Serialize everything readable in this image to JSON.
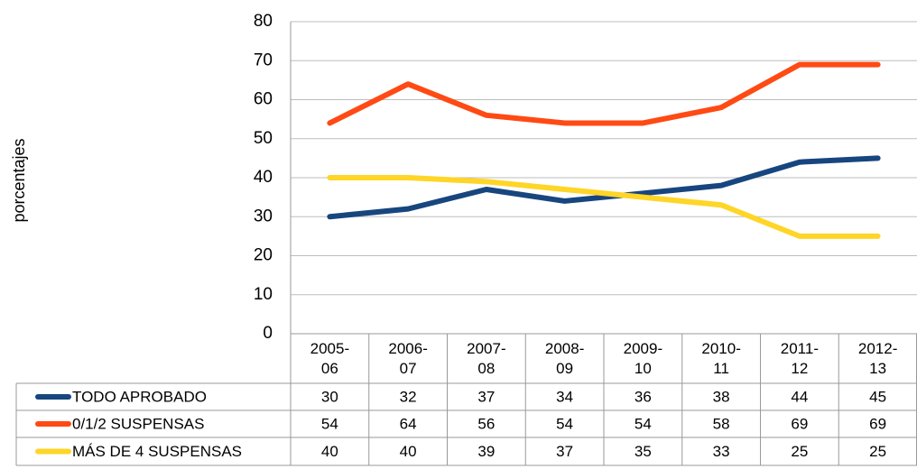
{
  "chart_data": {
    "type": "line",
    "ylabel": "porcentajes",
    "categories": [
      "2005-06",
      "2006-07",
      "2007-08",
      "2008-09",
      "2009-10",
      "2010-11",
      "2011-12",
      "2012-13"
    ],
    "series": [
      {
        "name": "TODO APROBADO",
        "color": "#17467f",
        "values": [
          30,
          32,
          37,
          34,
          36,
          38,
          44,
          45
        ]
      },
      {
        "name": "0/1/2 SUSPENSAS",
        "color": "#ff4a14",
        "values": [
          54,
          64,
          56,
          54,
          54,
          58,
          69,
          69
        ]
      },
      {
        "name": "MÁS DE 4 SUSPENSAS",
        "color": "#ffd527",
        "values": [
          40,
          40,
          39,
          37,
          35,
          33,
          25,
          25
        ]
      }
    ],
    "ylim": [
      0,
      80
    ],
    "yticks": [
      0,
      10,
      20,
      30,
      40,
      50,
      60,
      70,
      80
    ],
    "grid": true
  }
}
